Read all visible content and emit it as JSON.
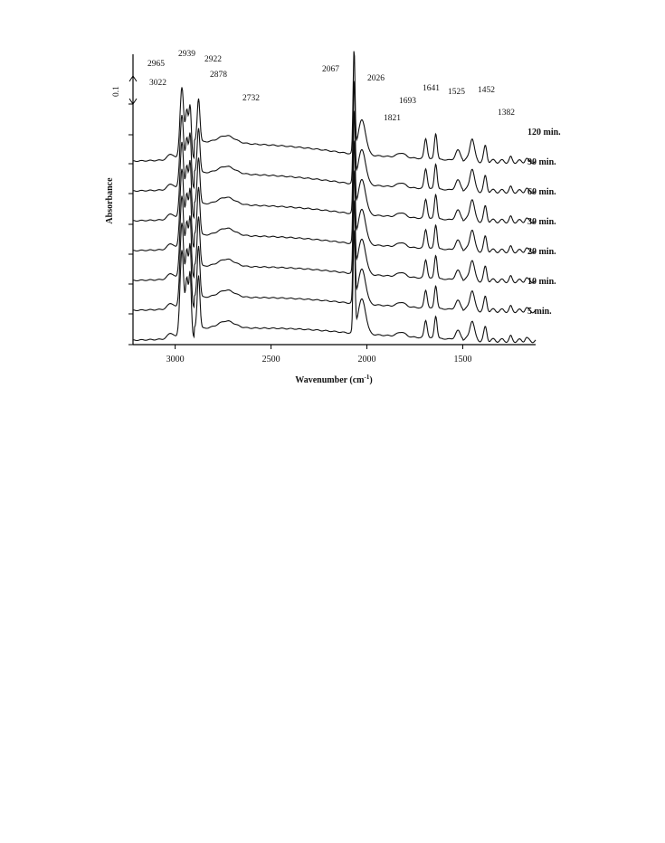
{
  "chart_data": {
    "type": "line",
    "xlabel": "Wavenumber (cm",
    "xlabel_sup": "-1",
    "xlabel_end": ")",
    "ylabel": "Absorbance",
    "xlim": [
      3220,
      1120
    ],
    "x_reversed": true,
    "x_ticks": [
      3000,
      2500,
      2000,
      1500
    ],
    "x_tick_labels": [
      "3000",
      "2500",
      "2000",
      "1500"
    ],
    "scale_bar_label": "0.1",
    "scale_bar_value": 0.1,
    "grid": false,
    "legend": "series labels at right end of each trace",
    "series": [
      {
        "name": "5 min.",
        "offset": 0.0,
        "growth": 0.55
      },
      {
        "name": "10 min.",
        "offset": 0.1,
        "growth": 0.62
      },
      {
        "name": "20 min.",
        "offset": 0.2,
        "growth": 0.7
      },
      {
        "name": "30 min.",
        "offset": 0.3,
        "growth": 0.78
      },
      {
        "name": "60 min.",
        "offset": 0.4,
        "growth": 0.86
      },
      {
        "name": "90 min.",
        "offset": 0.5,
        "growth": 0.94
      },
      {
        "name": "120 min.",
        "offset": 0.6,
        "growth": 1.0
      }
    ],
    "peak_annotations": [
      {
        "label": "3022",
        "x": 3022
      },
      {
        "label": "2965",
        "x": 2965
      },
      {
        "label": "2939",
        "x": 2939
      },
      {
        "label": "2922",
        "x": 2922
      },
      {
        "label": "2878",
        "x": 2878
      },
      {
        "label": "2732",
        "x": 2732
      },
      {
        "label": "2067",
        "x": 2067
      },
      {
        "label": "2026",
        "x": 2026
      },
      {
        "label": "1821",
        "x": 1821
      },
      {
        "label": "1693",
        "x": 1693
      },
      {
        "label": "1641",
        "x": 1641
      },
      {
        "label": "1525",
        "x": 1525
      },
      {
        "label": "1452",
        "x": 1452
      },
      {
        "label": "1382",
        "x": 1382
      }
    ]
  }
}
